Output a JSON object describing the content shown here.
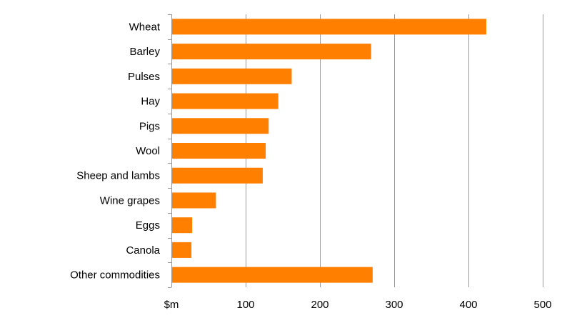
{
  "chart_data": {
    "type": "bar",
    "orientation": "horizontal",
    "categories": [
      "Wheat",
      "Barley",
      "Pulses",
      "Hay",
      "Pigs",
      "Wool",
      "Sheep and lambs",
      "Wine grapes",
      "Eggs",
      "Canola",
      "Other commodities"
    ],
    "values": [
      424,
      269,
      162,
      144,
      131,
      127,
      123,
      60,
      28,
      27,
      271
    ],
    "x_ticks": [
      "$m",
      "100",
      "200",
      "300",
      "400",
      "500"
    ],
    "xlim": [
      0,
      500
    ],
    "grid": "vertical",
    "bar_color": "#ff7f00",
    "grid_color": "#999999",
    "title": "",
    "xlabel": "",
    "ylabel": ""
  }
}
